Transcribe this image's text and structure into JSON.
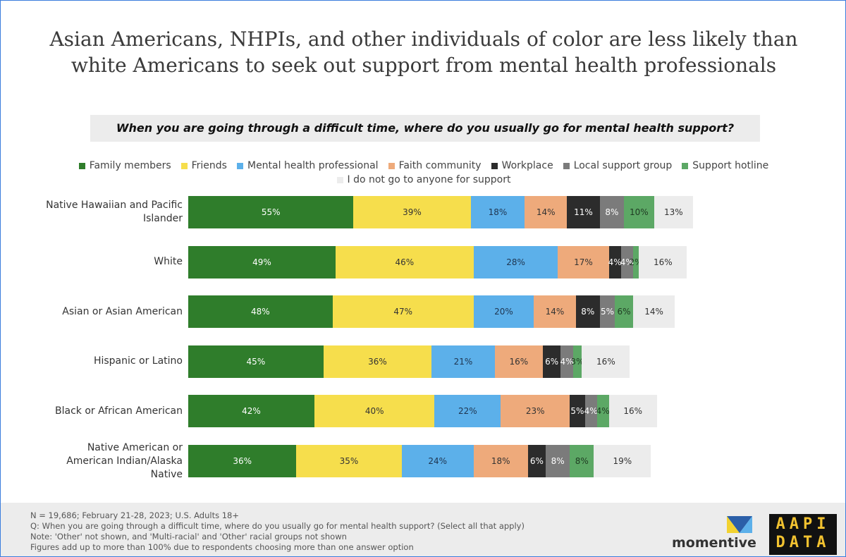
{
  "chart_data": {
    "type": "stacked-bar-horizontal",
    "title": "Asian Americans, NHPIs, and other individuals of color are less likely than white Americans to seek out support from mental health professionals",
    "subtitle": "When you are going through a difficult time, where do you usually go for mental health support?",
    "categories": [
      "Native Hawaiian and Pacific Islander",
      "White",
      "Asian or Asian American",
      "Hispanic or Latino",
      "Black or African American",
      "Native American or American Indian/Alaska Native"
    ],
    "series": [
      {
        "name": "Family members",
        "color": "#2f7d2b",
        "label_color": "#ffffff",
        "values": [
          55,
          49,
          48,
          45,
          42,
          36
        ],
        "value_labels": [
          "55%",
          "49%",
          "48%",
          "45%",
          "42%",
          "36%"
        ]
      },
      {
        "name": "Friends",
        "color": "#f6de4c",
        "label_color": "#333333",
        "values": [
          39,
          46,
          47,
          36,
          40,
          35
        ],
        "value_labels": [
          "39%",
          "46%",
          "47%",
          "36%",
          "40%",
          "35%"
        ]
      },
      {
        "name": "Mental health professional",
        "color": "#5cb0ea",
        "label_color": "#1f3550",
        "values": [
          18,
          28,
          20,
          21,
          22,
          24
        ],
        "value_labels": [
          "18%",
          "28%",
          "20%",
          "21%",
          "22%",
          "24%"
        ]
      },
      {
        "name": "Faith community",
        "color": "#eeaa7b",
        "label_color": "#333333",
        "values": [
          14,
          17,
          14,
          16,
          23,
          18
        ],
        "value_labels": [
          "14%",
          "17%",
          "14%",
          "16%",
          "23%",
          "18%"
        ]
      },
      {
        "name": "Workplace",
        "color": "#2c2c2c",
        "label_color": "#ffffff",
        "values": [
          11,
          4,
          8,
          6,
          5,
          6
        ],
        "value_labels": [
          "11%",
          "4%",
          "8%",
          "6%",
          "5%",
          "6%"
        ]
      },
      {
        "name": "Local support group",
        "color": "#7b7b7b",
        "label_color": "#ffffff",
        "values": [
          8,
          4,
          5,
          4,
          4,
          8
        ],
        "value_labels": [
          "8%",
          "4%",
          "5%",
          "4%",
          "4%",
          "8%"
        ]
      },
      {
        "name": "Support hotline",
        "color": "#5ca865",
        "label_color": "#1f3a22",
        "values": [
          10,
          2,
          6,
          3,
          4,
          8
        ],
        "value_labels": [
          "10%",
          "2%",
          "6%",
          "3%",
          "4%",
          "8%"
        ]
      },
      {
        "name": "I do not go to anyone for support",
        "color": "#ececec",
        "label_color": "#333333",
        "values": [
          13,
          16,
          14,
          16,
          16,
          19
        ],
        "value_labels": [
          "13%",
          "16%",
          "14%",
          "16%",
          "16%",
          "19%"
        ]
      }
    ],
    "notes": [
      "N = 19,686; February 21-28, 2023; U.S. Adults 18+",
      "Q: When you are going through a difficult time, where do you usually go for mental health support? (Select all that apply)",
      "Note: 'Other' not shown, and 'Multi-racial' and 'Other' racial groups not shown",
      "Figures add up to more than 100% due to respondents choosing more than one answer option"
    ],
    "logos": {
      "momentive": "momentive",
      "aapi_data": [
        "AAPI",
        "DATA"
      ]
    }
  }
}
